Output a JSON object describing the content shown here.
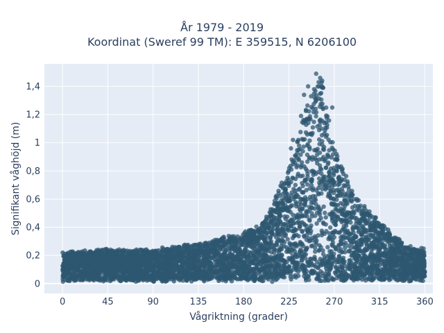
{
  "chart_data": {
    "type": "scatter",
    "title_line1": "År 1979 - 2019",
    "title_line2": "Koordinat (Sweref 99 TM): E 359515, N 6206100",
    "xlabel": "Vågriktning (grader)",
    "ylabel": "Signifikant våghöjd (m)",
    "xlim": [
      -18,
      368
    ],
    "ylim": [
      -0.07,
      1.56
    ],
    "xticks": [
      0,
      45,
      90,
      135,
      180,
      225,
      270,
      315,
      360
    ],
    "xtick_labels": [
      "0",
      "45",
      "90",
      "135",
      "180",
      "225",
      "270",
      "315",
      "360"
    ],
    "yticks": [
      0,
      0.2,
      0.4,
      0.6,
      0.8,
      1,
      1.2,
      1.4
    ],
    "ytick_labels": [
      "0",
      "0,2",
      "0,4",
      "0,6",
      "0,8",
      "1",
      "1,2",
      "1,4"
    ],
    "grid": true,
    "marker_color": "#2e5770",
    "plot_bg": "#e5ecf6",
    "envelope": {
      "direction": [
        0,
        45,
        90,
        135,
        180,
        200,
        225,
        245,
        255,
        270,
        290,
        315,
        340,
        360
      ],
      "max_height": [
        0.2,
        0.22,
        0.22,
        0.26,
        0.34,
        0.42,
        0.8,
        1.3,
        1.5,
        0.95,
        0.6,
        0.42,
        0.25,
        0.22
      ]
    },
    "highlighted_points": [
      {
        "x": 252,
        "y": 1.49
      },
      {
        "x": 256,
        "y": 1.46
      },
      {
        "x": 258,
        "y": 1.44
      },
      {
        "x": 244,
        "y": 1.4
      },
      {
        "x": 250,
        "y": 1.38
      },
      {
        "x": 259,
        "y": 1.39
      },
      {
        "x": 247,
        "y": 1.33
      },
      {
        "x": 240,
        "y": 1.34
      },
      {
        "x": 252,
        "y": 1.3
      },
      {
        "x": 237,
        "y": 1.19
      },
      {
        "x": 229,
        "y": 1.02
      },
      {
        "x": 227,
        "y": 0.96
      },
      {
        "x": 235,
        "y": 0.98
      },
      {
        "x": 268,
        "y": 1.25
      }
    ]
  }
}
